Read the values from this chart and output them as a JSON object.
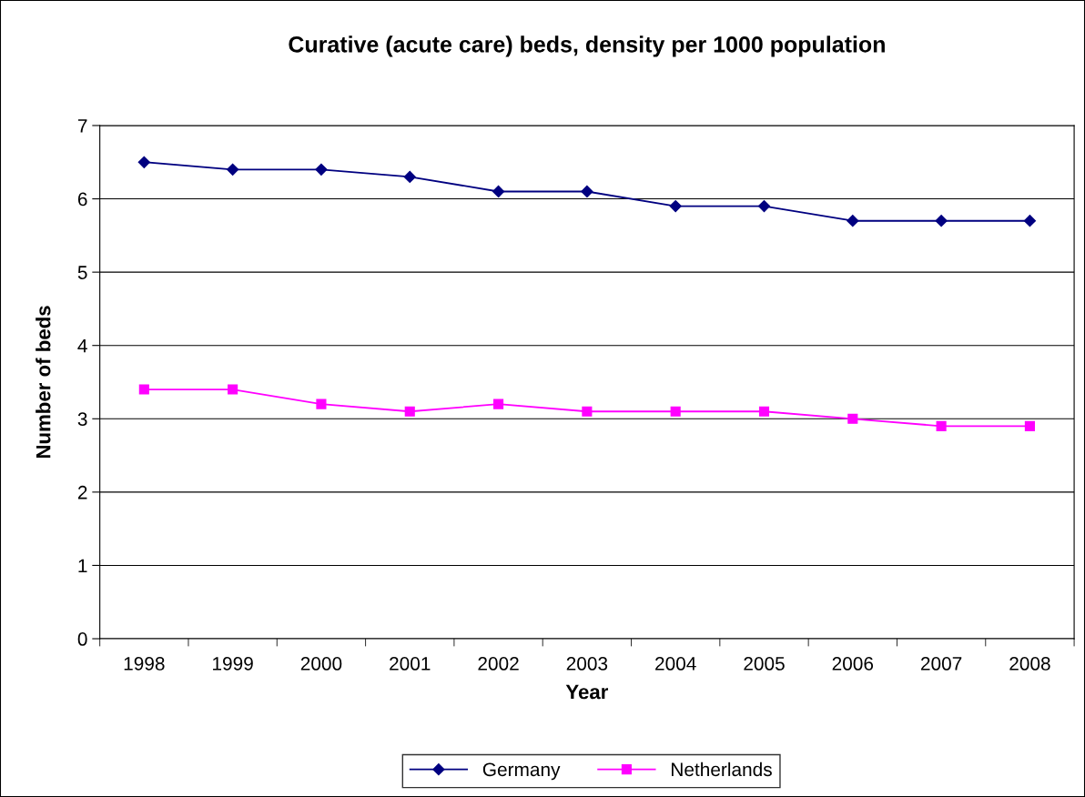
{
  "chart_data": {
    "type": "line",
    "title": "Curative (acute care) beds, density per 1000 population",
    "xlabel": "Year",
    "ylabel": "Number of beds",
    "categories": [
      "1998",
      "1999",
      "2000",
      "2001",
      "2002",
      "2003",
      "2004",
      "2005",
      "2006",
      "2007",
      "2008"
    ],
    "series": [
      {
        "name": "Germany",
        "color": "#000080",
        "marker": "diamond",
        "values": [
          6.5,
          6.4,
          6.4,
          6.3,
          6.1,
          6.1,
          5.9,
          5.9,
          5.7,
          5.7,
          5.7
        ]
      },
      {
        "name": "Netherlands",
        "color": "#ff00ff",
        "marker": "square",
        "values": [
          3.4,
          3.4,
          3.2,
          3.1,
          3.2,
          3.1,
          3.1,
          3.1,
          3.0,
          2.9,
          2.9
        ]
      }
    ],
    "ylim": [
      0,
      7
    ],
    "yticks": [
      0,
      1,
      2,
      3,
      4,
      5,
      6,
      7
    ],
    "grid": "y",
    "legend": "bottom",
    "line_style": "solid"
  }
}
